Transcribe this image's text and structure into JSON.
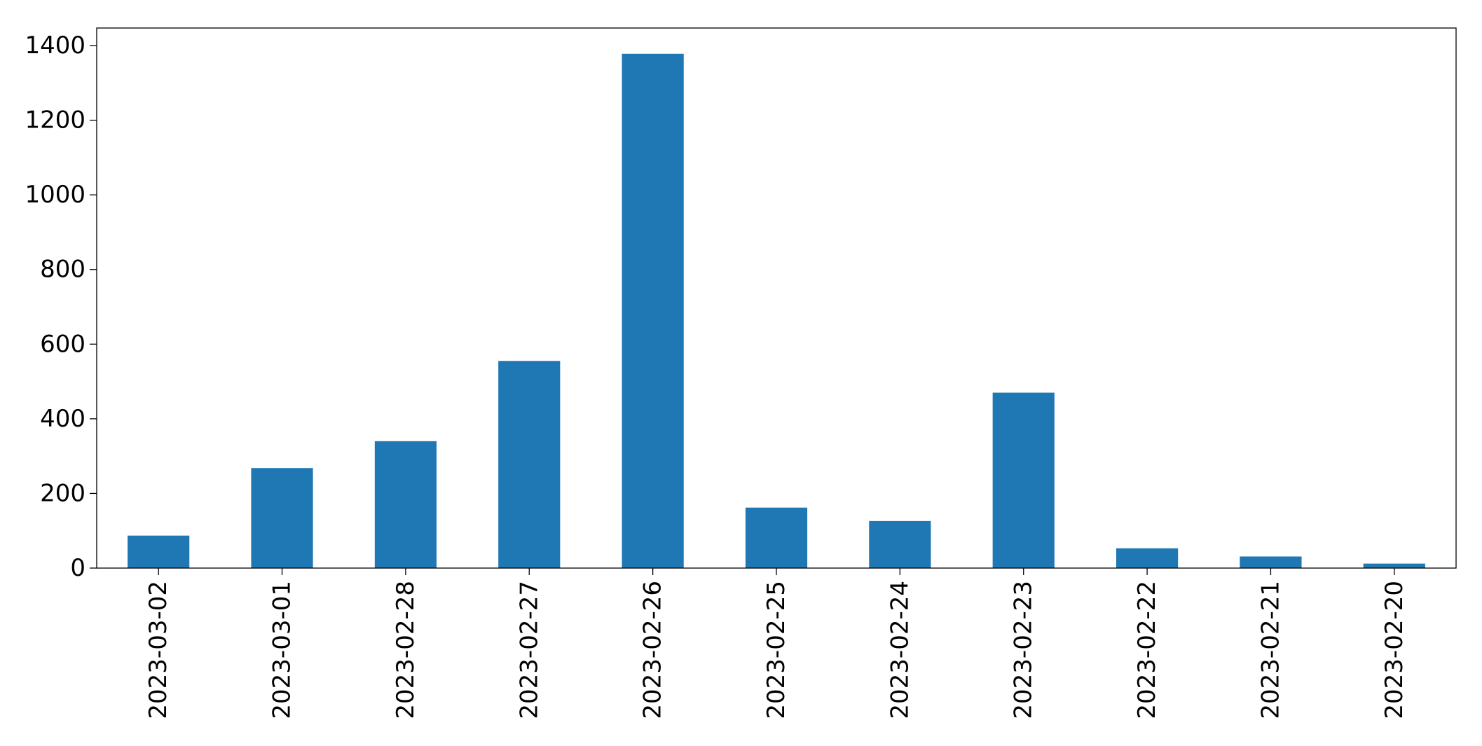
{
  "chart_data": {
    "type": "bar",
    "title": "",
    "xlabel": "",
    "ylabel": "",
    "categories": [
      "2023-03-02",
      "2023-03-01",
      "2023-02-28",
      "2023-02-27",
      "2023-02-26",
      "2023-02-25",
      "2023-02-24",
      "2023-02-23",
      "2023-02-22",
      "2023-02-21",
      "2023-02-20"
    ],
    "values": [
      87,
      268,
      340,
      555,
      1378,
      162,
      126,
      470,
      53,
      31,
      12
    ],
    "ylim": [
      0,
      1447
    ],
    "yticks": [
      0,
      200,
      400,
      600,
      800,
      1000,
      1200,
      1400
    ],
    "grid": false,
    "legend": "none",
    "bar_color": "#1f77b4"
  }
}
